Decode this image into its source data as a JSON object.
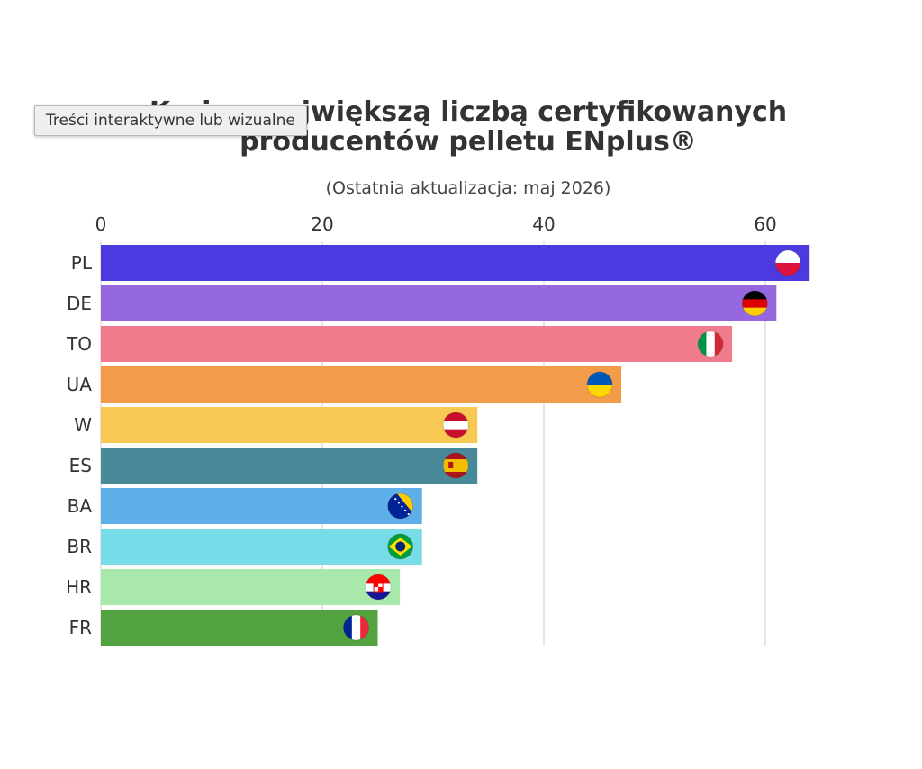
{
  "tooltip": {
    "text": "Treści interaktywne lub wizualne"
  },
  "chart_data": {
    "type": "bar",
    "orientation": "horizontal",
    "title": "Kraje z największą liczbą certyfikowanych producentów pelletu ENplus®",
    "subtitle": "(Ostatnia aktualizacja: maj 2026)",
    "xlabel": "",
    "ylabel": "",
    "xlim": [
      0,
      65
    ],
    "xticks": [
      0,
      20,
      40,
      60
    ],
    "grid": true,
    "categories": [
      "PL",
      "DE",
      "TO",
      "UA",
      "W",
      "ES",
      "BA",
      "BR",
      "HR",
      "FR"
    ],
    "values": [
      64,
      61,
      57,
      47,
      34,
      34,
      29,
      29,
      27,
      25
    ],
    "colors": [
      "#4b3ae0",
      "#9668e0",
      "#f07b8c",
      "#f29b4a",
      "#f7c852",
      "#4a8999",
      "#5eaeea",
      "#78dbe8",
      "#a8e8ab",
      "#52a33f"
    ],
    "flag_icons": [
      "flag-poland-icon",
      "flag-germany-icon",
      "flag-italy-icon",
      "flag-ukraine-icon",
      "flag-austria-icon",
      "flag-spain-icon",
      "flag-bosnia-icon",
      "flag-brazil-icon",
      "flag-croatia-icon",
      "flag-france-icon"
    ]
  }
}
